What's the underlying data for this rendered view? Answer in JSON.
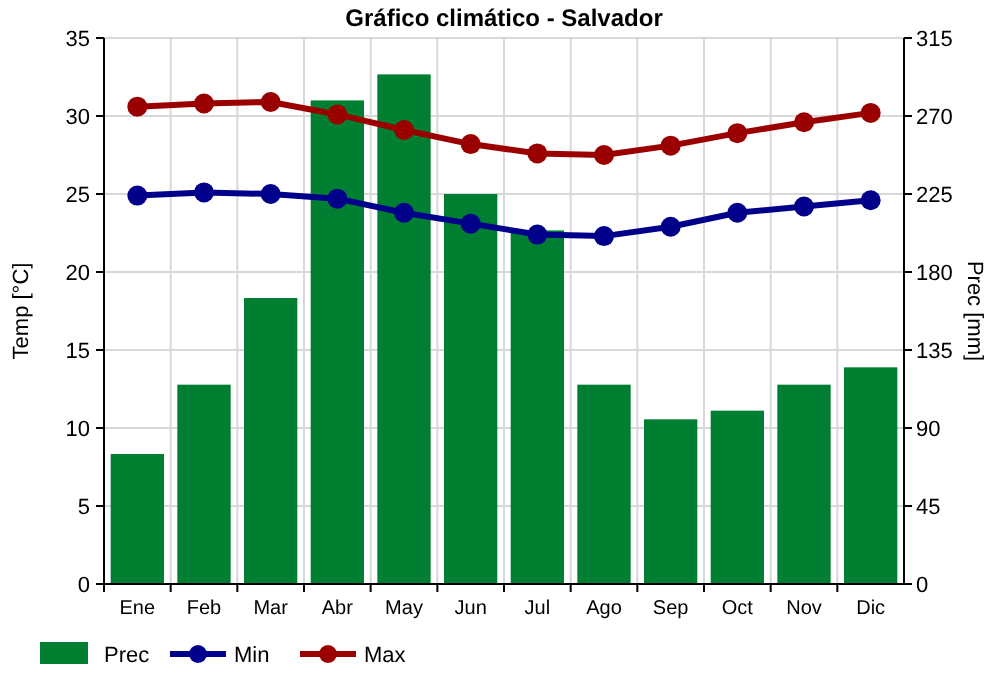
{
  "chart_data": {
    "type": "bar",
    "title": "Gráfico climático - Salvador",
    "ylabel": "Temp [°C]",
    "y2label": "Prec [mm]",
    "categories": [
      "Ene",
      "Feb",
      "Mar",
      "Abr",
      "May",
      "Jun",
      "Jul",
      "Ago",
      "Sep",
      "Oct",
      "Nov",
      "Dic"
    ],
    "series": [
      {
        "name": "Prec",
        "axis": "y2",
        "color": "#007f33",
        "values": [
          75,
          115,
          165,
          279,
          294,
          225,
          204,
          115,
          95,
          100,
          115,
          125
        ]
      },
      {
        "name": "Min",
        "type": "line",
        "axis": "y",
        "color": "#00008b",
        "values": [
          24.9,
          25.1,
          25.0,
          24.7,
          23.8,
          23.1,
          22.4,
          22.3,
          22.9,
          23.8,
          24.2,
          24.6
        ]
      },
      {
        "name": "Max",
        "type": "line",
        "axis": "y",
        "color": "#9b0000",
        "values": [
          30.6,
          30.8,
          30.9,
          30.1,
          29.1,
          28.2,
          27.6,
          27.5,
          28.1,
          28.9,
          29.6,
          30.2
        ]
      }
    ],
    "ylim": [
      0,
      35
    ],
    "yticks": [
      0,
      5,
      10,
      15,
      20,
      25,
      30,
      35
    ],
    "y2lim": [
      0,
      315
    ],
    "y2ticks": [
      0,
      45,
      90,
      135,
      180,
      225,
      270,
      315
    ],
    "grid": true,
    "legend": "bottom",
    "marker": "circle"
  }
}
